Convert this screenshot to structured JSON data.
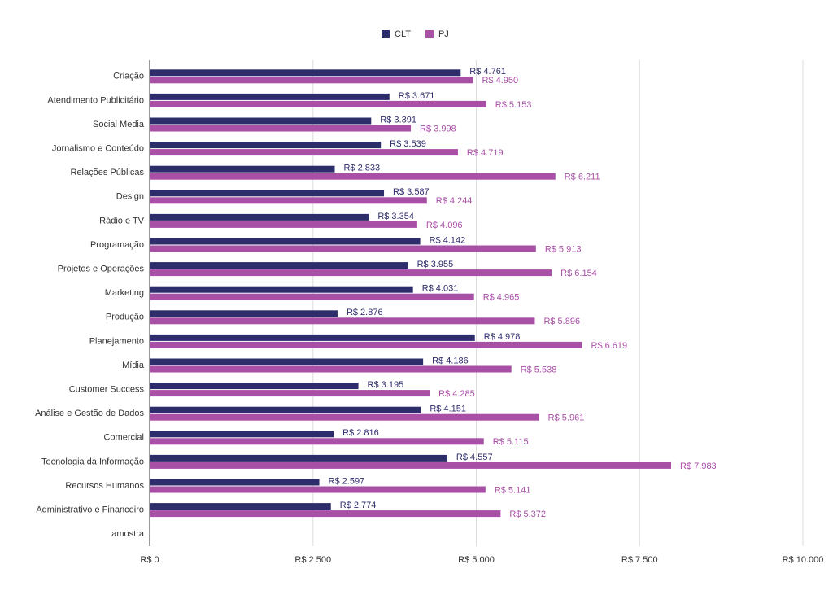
{
  "chart_data": {
    "type": "hbar",
    "categories": [
      "Criação",
      "Atendimento Publicitário",
      "Social Media",
      "Jornalismo e Conteúdo",
      "Relações Públicas",
      "Design",
      "Rádio e TV",
      "Programação",
      "Projetos e Operações",
      "Marketing",
      "Produção",
      "Planejamento",
      "Mídia",
      "Customer Success",
      "Análise e Gestão de Dados",
      "Comercial",
      "Tecnologia da Informação",
      "Recursos Humanos",
      "Administrativo e Financeiro",
      "amostra"
    ],
    "series": [
      {
        "name": "CLT",
        "color": "#2e2d6c",
        "values": [
          4761,
          3671,
          3391,
          3539,
          2833,
          3587,
          3354,
          4142,
          3955,
          4031,
          2876,
          4978,
          4186,
          3195,
          4151,
          2816,
          4557,
          2597,
          2774,
          null
        ],
        "value_labels": [
          "R$ 4.761",
          "R$ 3.671",
          "R$ 3.391",
          "R$ 3.539",
          "R$ 2.833",
          "R$ 3.587",
          "R$ 3.354",
          "R$ 4.142",
          "R$ 3.955",
          "R$ 4.031",
          "R$ 2.876",
          "R$ 4.978",
          "R$ 4.186",
          "R$ 3.195",
          "R$ 4.151",
          "R$ 2.816",
          "R$ 4.557",
          "R$ 2.597",
          "R$ 2.774",
          null
        ]
      },
      {
        "name": "PJ",
        "color": "#a84fa6",
        "values": [
          4950,
          5153,
          3998,
          4719,
          6211,
          4244,
          4096,
          5913,
          6154,
          4965,
          5896,
          6619,
          5538,
          4285,
          5961,
          5115,
          7983,
          5141,
          5372,
          null
        ],
        "value_labels": [
          "R$ 4.950",
          "R$ 5.153",
          "R$ 3.998",
          "R$ 4.719",
          "R$ 6.211",
          "R$ 4.244",
          "R$ 4.096",
          "R$ 5.913",
          "R$ 6.154",
          "R$ 4.965",
          "R$ 5.896",
          "R$ 6.619",
          "R$ 5.538",
          "R$ 4.285",
          "R$ 5.961",
          "R$ 5.115",
          "R$ 7.983",
          "R$ 5.141",
          "R$ 5.372",
          null
        ]
      }
    ],
    "xlim": [
      0,
      10000
    ],
    "xticks": [
      {
        "value": 0,
        "label": "R$ 0"
      },
      {
        "value": 2500,
        "label": "R$ 2.500"
      },
      {
        "value": 5000,
        "label": "R$ 5.000"
      },
      {
        "value": 7500,
        "label": "R$ 7.500"
      },
      {
        "value": 10000,
        "label": "R$ 10.000"
      }
    ],
    "grid": true,
    "legend": "top"
  }
}
